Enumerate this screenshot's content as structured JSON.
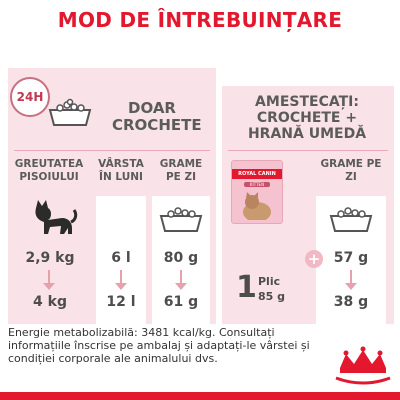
{
  "title": "MOD DE ÎNTREBUINȚARE",
  "badge": "24H",
  "left": {
    "heading": "DOAR CROCHETE",
    "col_weight": "GREUTATEA PISOIULUI",
    "col_age": "VÂRSTA ÎN LUNI",
    "col_grams": "GRAME PE ZI",
    "rows": [
      {
        "weight": "2,9 kg",
        "age": "6 l",
        "grams": "80 g"
      },
      {
        "weight": "4 kg",
        "age": "12 l",
        "grams": "61 g"
      }
    ]
  },
  "right": {
    "heading": "AMESTECAȚI: CROCHETE + HRANĂ UMEDĂ",
    "col_grams": "GRAME PE ZI",
    "pouch_count": "1",
    "pouch_unit": "Plic",
    "pouch_weight": "85 g",
    "plus": "+",
    "rows": [
      {
        "grams": "57 g"
      },
      {
        "grams": "38 g"
      }
    ],
    "pouch_brand": "ROYAL CANIN",
    "pouch_product": "KITTEN"
  },
  "footer": "Energie metabolizabilă: 3481 kcal/kg. Consultați informațiile înscrise pe ambalaj și adaptați-le vârstei și condiției corporale ale animalului dvs.",
  "logo_text": "ROYAL CANIN",
  "colors": {
    "brand_red": "#e3172d",
    "panel_pink": "#f9e3e8",
    "text_grey": "#5b5b5b"
  }
}
